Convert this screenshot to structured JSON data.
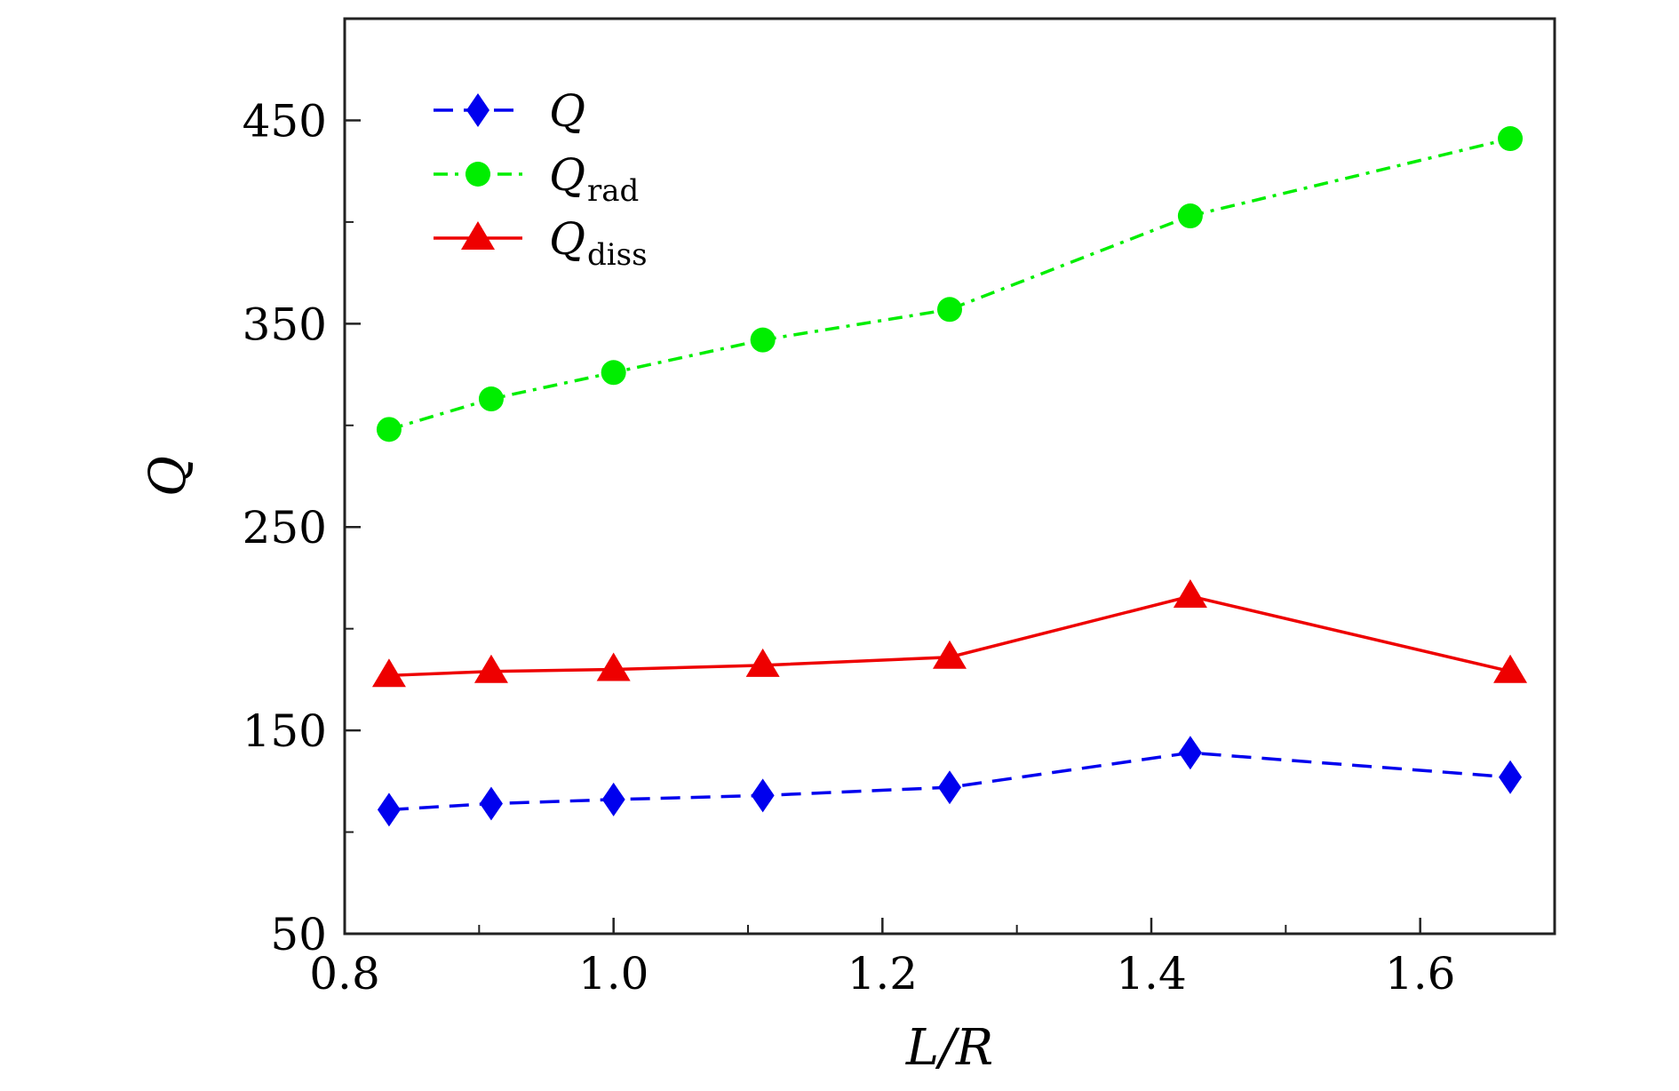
{
  "chart_data": {
    "type": "line",
    "title": "",
    "xlabel": "L/R",
    "ylabel": "Q",
    "xlim": [
      0.8,
      1.7
    ],
    "ylim": [
      50,
      500
    ],
    "xticks": [
      0.8,
      1.0,
      1.2,
      1.4,
      1.6
    ],
    "xtick_labels": [
      "0.8",
      "1.0",
      "1.2",
      "1.4",
      "1.6"
    ],
    "xminor": [
      0.9,
      1.1,
      1.3,
      1.5
    ],
    "yticks": [
      50,
      150,
      250,
      350,
      450
    ],
    "ytick_labels": [
      "50",
      "150",
      "250",
      "350",
      "450"
    ],
    "yminor": [
      100,
      200,
      300,
      400
    ],
    "grid": false,
    "legend_position": "top-left",
    "x": [
      0.833,
      0.909,
      1.0,
      1.111,
      1.25,
      1.429,
      1.667
    ],
    "series": [
      {
        "name": "Q",
        "label_main": "Q",
        "label_sub": "",
        "color": "#0000ee",
        "marker": "diamond",
        "dash": "dashed",
        "values": [
          111,
          114,
          116,
          118,
          122,
          139,
          127
        ]
      },
      {
        "name": "Q_rad",
        "label_main": "Q",
        "label_sub": "rad",
        "color": "#00ee00",
        "marker": "circle",
        "dash": "dashdot",
        "values": [
          298,
          313,
          326,
          342,
          357,
          403,
          441
        ]
      },
      {
        "name": "Q_diss",
        "label_main": "Q",
        "label_sub": "diss",
        "color": "#ee0000",
        "marker": "triangle",
        "dash": "solid",
        "values": [
          177,
          179,
          180,
          182,
          186,
          216,
          179
        ]
      }
    ]
  }
}
